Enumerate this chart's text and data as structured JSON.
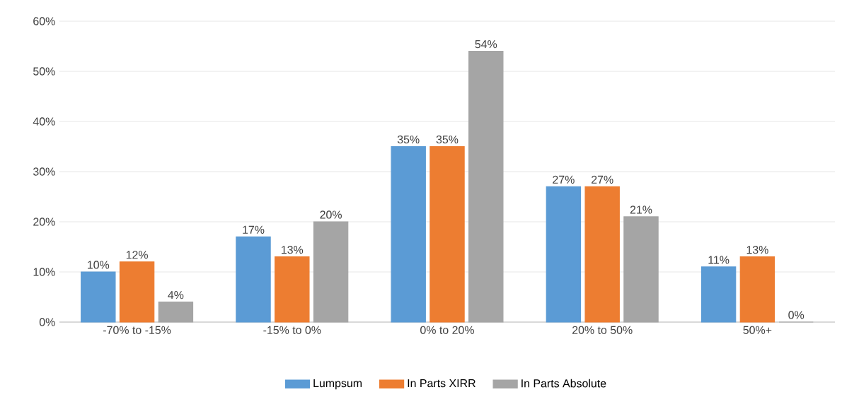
{
  "chart_data": {
    "type": "bar",
    "categories": [
      "-70% to -15%",
      "-15% to 0%",
      "0% to 20%",
      "20% to 50%",
      "50%+"
    ],
    "series": [
      {
        "name": "Lumpsum",
        "color": "#5b9bd5",
        "values": [
          10,
          17,
          35,
          27,
          11
        ],
        "value_labels": [
          "10%",
          "17%",
          "35%",
          "27%",
          "11%"
        ]
      },
      {
        "name": "In Parts XIRR",
        "color": "#ed7d31",
        "values": [
          12,
          13,
          35,
          27,
          13
        ],
        "value_labels": [
          "12%",
          "13%",
          "35%",
          "27%",
          "13%"
        ]
      },
      {
        "name": "In Parts Absolute",
        "color": "#a5a5a5",
        "values": [
          4,
          20,
          54,
          21,
          0
        ],
        "value_labels": [
          "4%",
          "20%",
          "54%",
          "21%",
          "0%"
        ]
      }
    ],
    "ylim": [
      0,
      60
    ],
    "yticks": [
      {
        "value": 0,
        "label": "0%"
      },
      {
        "value": 10,
        "label": "10%"
      },
      {
        "value": 20,
        "label": "20%"
      },
      {
        "value": 30,
        "label": "30%"
      },
      {
        "value": 40,
        "label": "40%"
      },
      {
        "value": 50,
        "label": "50%"
      },
      {
        "value": 60,
        "label": "60%"
      }
    ],
    "grid": "y",
    "legend": "bottom"
  }
}
